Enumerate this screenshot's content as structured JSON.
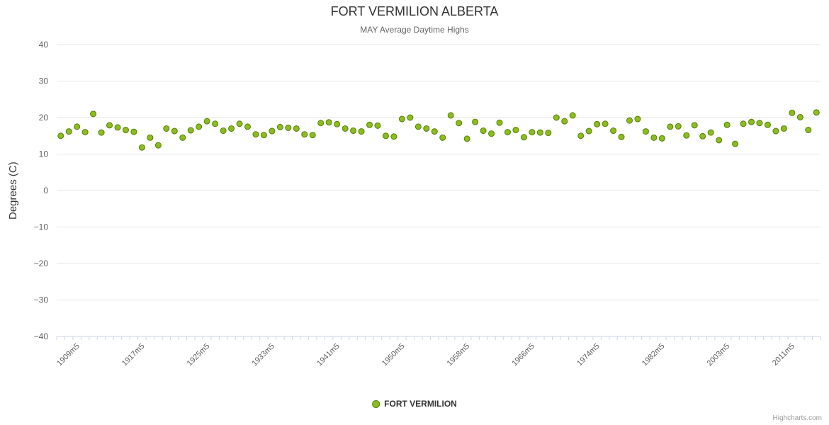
{
  "chart": {
    "title": "FORT VERMILION ALBERTA",
    "subtitle": "MAY Average Daytime Highs",
    "ylabel": "Degrees (C)",
    "series_name": "FORT VERMILION",
    "credits": "Highcharts.com"
  },
  "chart_data": {
    "type": "scatter",
    "title": "FORT VERMILION ALBERTA",
    "subtitle": "MAY Average Daytime Highs",
    "xlabel": "",
    "ylabel": "Degrees (C)",
    "ylim": [
      -40,
      40
    ],
    "y_tick_step": 10,
    "grid": true,
    "legend_position": "bottom",
    "series_name": "FORT VERMILION",
    "series_color": "#8bbc21",
    "series_stroke": "#567f00",
    "grid_color": "#e6e6e6",
    "axis_line_color": "#ccd6eb",
    "label_color": "#606060",
    "categories": [
      "1907m5",
      "1908m5",
      "1909m5",
      "1910m5",
      "1911m5",
      "1912m5",
      "1913m5",
      "1914m5",
      "1915m5",
      "1916m5",
      "1917m5",
      "1918m5",
      "1919m5",
      "1920m5",
      "1921m5",
      "1922m5",
      "1923m5",
      "1924m5",
      "1925m5",
      "1926m5",
      "1927m5",
      "1928m5",
      "1929m5",
      "1930m5",
      "1931m5",
      "1932m5",
      "1933m5",
      "1934m5",
      "1935m5",
      "1936m5",
      "1937m5",
      "1938m5",
      "1939m5",
      "1940m5",
      "1941m5",
      "1942m5",
      "1943m5",
      "1944m5",
      "1946m5",
      "1947m5",
      "1948m5",
      "1949m5",
      "1950m5",
      "1951m5",
      "1952m5",
      "1953m5",
      "1954m5",
      "1955m5",
      "1956m5",
      "1957m5",
      "1958m5",
      "1959m5",
      "1960m5",
      "1961m5",
      "1962m5",
      "1963m5",
      "1964m5",
      "1965m5",
      "1966m5",
      "1967m5",
      "1968m5",
      "1969m5",
      "1970m5",
      "1971m5",
      "1972m5",
      "1973m5",
      "1974m5",
      "1975m5",
      "1976m5",
      "1977m5",
      "1978m5",
      "1979m5",
      "1980m5",
      "1981m5",
      "1982m5",
      "1983m5",
      "1984m5",
      "1985m5",
      "1988m5",
      "1993m5",
      "1998m5",
      "2002m5",
      "2003m5",
      "2004m5",
      "2005m5",
      "2006m5",
      "2007m5",
      "2008m5",
      "2009m5",
      "2010m5",
      "2011m5",
      "2012m5",
      "2013m5",
      "2014m5"
    ],
    "values": [
      15.0,
      16.2,
      17.5,
      16.0,
      21.0,
      15.9,
      17.9,
      17.3,
      16.6,
      16.1,
      11.8,
      14.5,
      12.4,
      17.0,
      16.3,
      14.5,
      16.5,
      17.5,
      19.0,
      18.3,
      16.4,
      17.0,
      18.3,
      17.5,
      15.4,
      15.2,
      16.3,
      17.4,
      17.2,
      17.0,
      15.4,
      15.2,
      18.5,
      18.7,
      18.2,
      17.0,
      16.4,
      16.2,
      18.0,
      17.8,
      15.0,
      14.8,
      19.6,
      20.0,
      17.5,
      17.0,
      16.2,
      14.5,
      20.6,
      18.5,
      14.2,
      18.8,
      16.4,
      15.6,
      18.6,
      16.0,
      16.6,
      14.6,
      16.0,
      15.9,
      15.8,
      20.0,
      19.0,
      20.6,
      15.0,
      16.3,
      18.2,
      18.3,
      16.4,
      14.7,
      19.2,
      19.6,
      16.2,
      14.5,
      14.3,
      17.5,
      17.6,
      15.1,
      17.9,
      14.9,
      15.9,
      13.8,
      18.0,
      12.8,
      18.3,
      18.8,
      18.5,
      18.0,
      16.3,
      17.0,
      21.3,
      20.1,
      16.6,
      21.4
    ],
    "x_tick_indices": [
      2,
      10,
      18,
      26,
      34,
      42,
      50,
      58,
      66,
      74,
      82,
      90
    ],
    "x_tick_labels": [
      "1909m5",
      "1917m5",
      "1925m5",
      "1933m5",
      "1941m5",
      "1950m5",
      "1958m5",
      "1966m5",
      "1974m5",
      "1982m5",
      "2003m5",
      "2011m5"
    ]
  }
}
